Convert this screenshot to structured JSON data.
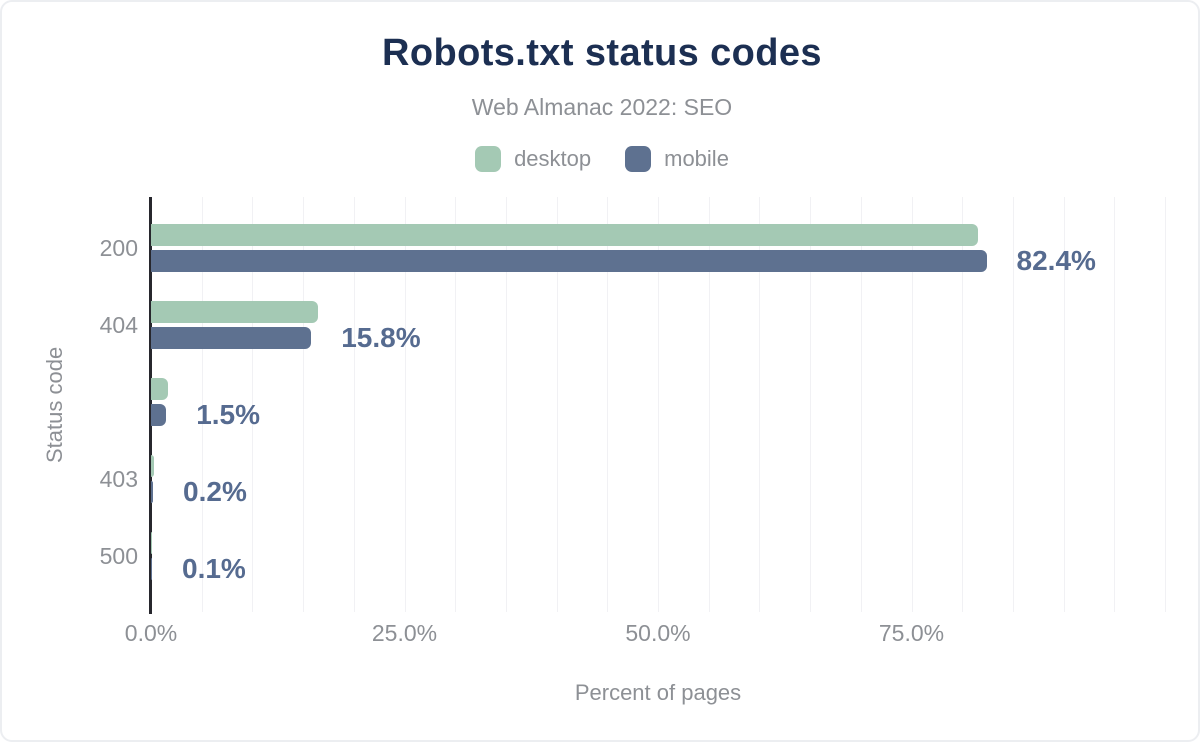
{
  "chart": {
    "title": "Robots.txt status codes",
    "subtitle": "Web Almanac 2022: SEO",
    "xlabel": "Percent of pages",
    "ylabel": "Status code",
    "colors": {
      "desktop": "#a4c9b4",
      "mobile": "#5e7190",
      "title": "#1c2f52",
      "value_label": "#566b90"
    },
    "legend": [
      {
        "label": "desktop",
        "color": "#a4c9b4"
      },
      {
        "label": "mobile",
        "color": "#5e7190"
      }
    ]
  },
  "chart_data": {
    "type": "bar",
    "orientation": "horizontal",
    "title": "Robots.txt status codes",
    "subtitle": "Web Almanac 2022: SEO",
    "categories": [
      "200",
      "404",
      "",
      "403",
      "500"
    ],
    "series": [
      {
        "name": "desktop",
        "color": "#a4c9b4",
        "values": [
          81.6,
          16.5,
          1.7,
          0.3,
          0.1
        ]
      },
      {
        "name": "mobile",
        "color": "#5e7190",
        "values": [
          82.4,
          15.8,
          1.5,
          0.2,
          0.1
        ]
      }
    ],
    "value_labels": [
      "82.4%",
      "15.8%",
      "1.5%",
      "0.2%",
      "0.1%"
    ],
    "labeled_series": "mobile",
    "xlabel": "Percent of pages",
    "ylabel": "Status code",
    "x_ticks": [
      {
        "value": 0,
        "label": "0.0%"
      },
      {
        "value": 25,
        "label": "25.0%"
      },
      {
        "value": 50,
        "label": "50.0%"
      },
      {
        "value": 75,
        "label": "75.0%"
      }
    ],
    "xlim": [
      0,
      100
    ],
    "grid": "vertical, every 5%",
    "legend_position": "top"
  }
}
